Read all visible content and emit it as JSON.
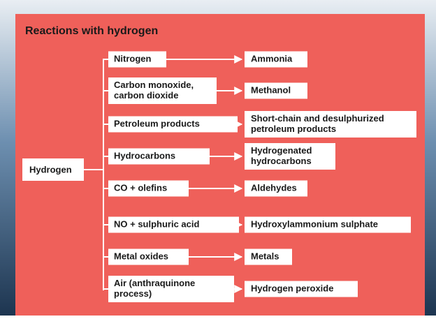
{
  "title": "Reactions with hydrogen",
  "root": "Hydrogen",
  "reactions": [
    {
      "reactant": [
        "Nitrogen"
      ],
      "product": [
        "Ammonia"
      ]
    },
    {
      "reactant": [
        "Carbon monoxide,",
        "carbon dioxide"
      ],
      "product": [
        "Methanol"
      ]
    },
    {
      "reactant": [
        "Petroleum products"
      ],
      "product": [
        "Short-chain and desulphurized",
        "petroleum products"
      ]
    },
    {
      "reactant": [
        "Hydrocarbons"
      ],
      "product": [
        "Hydrogenated",
        "hydrocarbons"
      ]
    },
    {
      "reactant": [
        "CO + olefins"
      ],
      "product": [
        "Aldehydes"
      ]
    },
    {
      "reactant": [
        "NO + sulphuric acid"
      ],
      "product": [
        "Hydroxylammonium sulphate"
      ]
    },
    {
      "reactant": [
        "Metal oxides"
      ],
      "product": [
        "Metals"
      ]
    },
    {
      "reactant": [
        "Air (anthraquinone",
        "process)"
      ],
      "product": [
        "Hydrogen peroxide"
      ]
    }
  ]
}
